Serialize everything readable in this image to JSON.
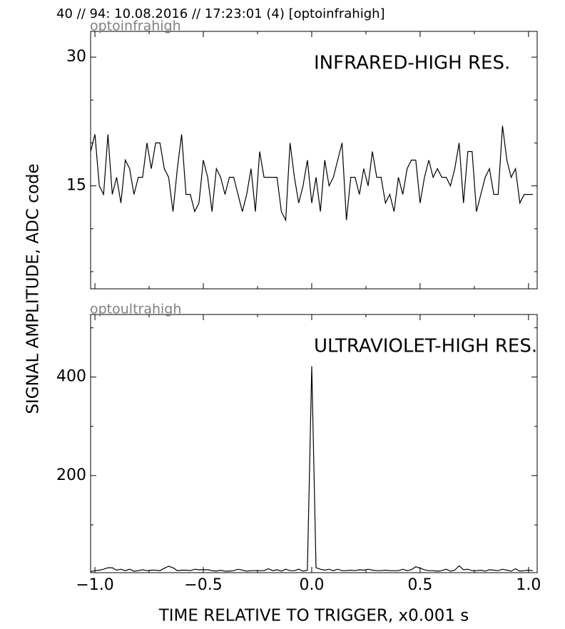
{
  "header": "40 // 94:   10.08.2016 // 17:23:01 (4)  [optoinfrahigh]",
  "ylabel": "SIGNAL AMPLITUDE,  ADC code",
  "xlabel": "TIME RELATIVE TO TRIGGER,   x0.001 s",
  "chart_data": [
    {
      "type": "line",
      "panel_label": "optoinfrahigh",
      "annotation": "INFRARED-HIGH RES.",
      "color": "#000000",
      "x": [
        -1.02,
        -1.0,
        -0.98,
        -0.96,
        -0.94,
        -0.92,
        -0.9,
        -0.88,
        -0.86,
        -0.84,
        -0.82,
        -0.8,
        -0.78,
        -0.76,
        -0.74,
        -0.72,
        -0.7,
        -0.68,
        -0.66,
        -0.64,
        -0.62,
        -0.6,
        -0.58,
        -0.56,
        -0.54,
        -0.52,
        -0.5,
        -0.48,
        -0.46,
        -0.44,
        -0.42,
        -0.4,
        -0.38,
        -0.36,
        -0.34,
        -0.32,
        -0.3,
        -0.28,
        -0.26,
        -0.24,
        -0.22,
        -0.2,
        -0.18,
        -0.16,
        -0.14,
        -0.12,
        -0.1,
        -0.08,
        -0.06,
        -0.04,
        -0.02,
        0.0,
        0.02,
        0.04,
        0.06,
        0.08,
        0.1,
        0.12,
        0.14,
        0.16,
        0.18,
        0.2,
        0.22,
        0.24,
        0.26,
        0.28,
        0.3,
        0.32,
        0.34,
        0.36,
        0.38,
        0.4,
        0.42,
        0.44,
        0.46,
        0.48,
        0.5,
        0.52,
        0.54,
        0.56,
        0.58,
        0.6,
        0.62,
        0.64,
        0.66,
        0.68,
        0.7,
        0.72,
        0.74,
        0.76,
        0.78,
        0.8,
        0.82,
        0.84,
        0.86,
        0.88,
        0.9,
        0.92,
        0.94,
        0.96,
        0.98,
        1.0,
        1.02
      ],
      "values": [
        19,
        21,
        15,
        14,
        21,
        14,
        16,
        13,
        18,
        17,
        14,
        16,
        16,
        20,
        17,
        20,
        20,
        17,
        16,
        12,
        17,
        21,
        14,
        14,
        12,
        13,
        18,
        16,
        12,
        17,
        16,
        14,
        16,
        16,
        14,
        12,
        14,
        17,
        12,
        19,
        16,
        16,
        16,
        16,
        12,
        11,
        20,
        16,
        13,
        15,
        18,
        13,
        16,
        12,
        18,
        15,
        16,
        18,
        20,
        11,
        16,
        16,
        14,
        17,
        15,
        19,
        16,
        16,
        13,
        14,
        12,
        16,
        14,
        17,
        18,
        18,
        13,
        16,
        18,
        16,
        17,
        16,
        16,
        15,
        17,
        20,
        13,
        19,
        19,
        12,
        14,
        16,
        17,
        14,
        14,
        22,
        18,
        16,
        17,
        13,
        14,
        14,
        14
      ],
      "xlim": [
        -1.02,
        1.04
      ],
      "ylim": [
        3,
        33
      ],
      "xticks": [
        -1,
        -0.5,
        0,
        0.5,
        1
      ],
      "xminorticks": [
        -0.75,
        -0.25,
        0.25,
        0.75
      ],
      "yticks": [
        15,
        30
      ],
      "yminorticks": [
        5,
        10,
        20,
        25
      ]
    },
    {
      "type": "line",
      "panel_label": "optoultrahigh",
      "annotation": "ULTRAVIOLET-HIGH RES.",
      "color": "#000000",
      "x": [
        -1.02,
        -1.0,
        -0.98,
        -0.96,
        -0.94,
        -0.92,
        -0.9,
        -0.88,
        -0.86,
        -0.84,
        -0.82,
        -0.8,
        -0.78,
        -0.76,
        -0.74,
        -0.72,
        -0.7,
        -0.68,
        -0.66,
        -0.64,
        -0.62,
        -0.6,
        -0.58,
        -0.56,
        -0.54,
        -0.52,
        -0.5,
        -0.48,
        -0.46,
        -0.44,
        -0.42,
        -0.4,
        -0.38,
        -0.36,
        -0.34,
        -0.32,
        -0.3,
        -0.28,
        -0.26,
        -0.24,
        -0.22,
        -0.2,
        -0.18,
        -0.16,
        -0.14,
        -0.12,
        -0.1,
        -0.08,
        -0.06,
        -0.04,
        -0.02,
        0.0,
        0.02,
        0.04,
        0.06,
        0.08,
        0.1,
        0.12,
        0.14,
        0.16,
        0.18,
        0.2,
        0.22,
        0.24,
        0.26,
        0.28,
        0.3,
        0.32,
        0.34,
        0.36,
        0.38,
        0.4,
        0.42,
        0.44,
        0.46,
        0.48,
        0.5,
        0.52,
        0.54,
        0.56,
        0.58,
        0.6,
        0.62,
        0.64,
        0.66,
        0.68,
        0.7,
        0.72,
        0.74,
        0.76,
        0.78,
        0.8,
        0.82,
        0.84,
        0.86,
        0.88,
        0.9,
        0.92,
        0.94,
        0.96,
        0.98,
        1.0,
        1.02
      ],
      "values": [
        5,
        7,
        8,
        10,
        13,
        13,
        8,
        10,
        7,
        10,
        6,
        7,
        9,
        7,
        8,
        8,
        7,
        12,
        16,
        13,
        7,
        8,
        8,
        7,
        10,
        9,
        9,
        9,
        7,
        6,
        8,
        6,
        6,
        7,
        10,
        8,
        6,
        7,
        7,
        7,
        7,
        11,
        7,
        9,
        6,
        10,
        7,
        7,
        10,
        6,
        8,
        422,
        13,
        10,
        8,
        10,
        7,
        10,
        7,
        7,
        8,
        7,
        9,
        8,
        10,
        8,
        7,
        7,
        8,
        7,
        7,
        7,
        10,
        7,
        9,
        15,
        12,
        9,
        7,
        7,
        6,
        7,
        10,
        6,
        8,
        17,
        9,
        10,
        7,
        7,
        8,
        6,
        9,
        8,
        7,
        10,
        8,
        6,
        11,
        6,
        7,
        8,
        7
      ],
      "xlim": [
        -1.02,
        1.04
      ],
      "ylim": [
        3,
        527
      ],
      "xticks": [
        {
          "value": -1,
          "label": "−1.0"
        },
        {
          "value": -0.5,
          "label": "−0.5"
        },
        {
          "value": 0,
          "label": "0.0"
        },
        {
          "value": 0.5,
          "label": "0.5"
        },
        {
          "value": 1,
          "label": "1.0"
        }
      ],
      "xminorticks": [
        -0.75,
        -0.25,
        0.25,
        0.75
      ],
      "yticks": [
        200,
        400
      ],
      "yminorticks": [
        100,
        300,
        500
      ]
    }
  ]
}
